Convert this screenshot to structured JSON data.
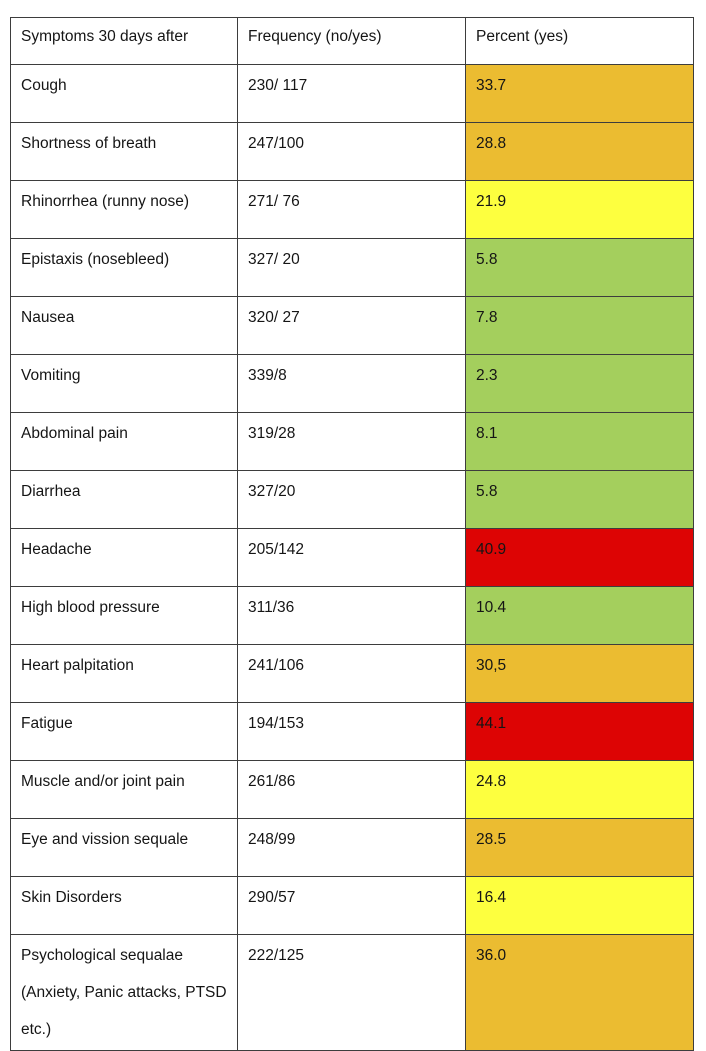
{
  "table": {
    "columns": [
      "Symptoms 30 days after",
      "Frequency (no/yes)",
      "Percent (yes)"
    ],
    "colors": {
      "orange": "#EBBC31",
      "yellow": "#FDFF3F",
      "green": "#A4CF5D",
      "red": "#DD0404"
    },
    "rows": [
      {
        "symptom": "Cough",
        "frequency": "230/ 117",
        "percent": "33.7",
        "color": "orange"
      },
      {
        "symptom": "Shortness of breath",
        "frequency": "247/100",
        "percent": "28.8",
        "color": "orange"
      },
      {
        "symptom": "Rhinorrhea (runny nose)",
        "frequency": "271/ 76",
        "percent": "21.9",
        "color": "yellow"
      },
      {
        "symptom": "Epistaxis (nosebleed)",
        "frequency": "327/ 20",
        "percent": "5.8",
        "color": "green"
      },
      {
        "symptom": "Nausea",
        "frequency": "320/ 27",
        "percent": "7.8",
        "color": "green"
      },
      {
        "symptom": "Vomiting",
        "frequency": "339/8",
        "percent": "2.3",
        "color": "green"
      },
      {
        "symptom": "Abdominal pain",
        "frequency": "319/28",
        "percent": "8.1",
        "color": "green"
      },
      {
        "symptom": "Diarrhea",
        "frequency": "327/20",
        "percent": "5.8",
        "color": "green"
      },
      {
        "symptom": "Headache",
        "frequency": "205/142",
        "percent": "40.9",
        "color": "red"
      },
      {
        "symptom": "High blood pressure",
        "frequency": "311/36",
        "percent": "10.4",
        "color": "green"
      },
      {
        "symptom": "Heart palpitation",
        "frequency": "241/106",
        "percent": "30,5",
        "color": "orange"
      },
      {
        "symptom": "Fatigue",
        "frequency": "194/153",
        "percent": "44.1",
        "color": "red"
      },
      {
        "symptom": "Muscle and/or joint pain",
        "frequency": "261/86",
        "percent": "24.8",
        "color": "yellow"
      },
      {
        "symptom": "Eye and vission sequale",
        "frequency": "248/99",
        "percent": "28.5",
        "color": "orange"
      },
      {
        "symptom": "Skin Disorders",
        "frequency": "290/57",
        "percent": "16.4",
        "color": "yellow"
      },
      {
        "symptom": "Psychological sequalae (Anxiety, Panic attacks, PTSD etc.)",
        "frequency": "222/125",
        "percent": "36.0",
        "color": "orange",
        "tall": true
      }
    ]
  }
}
